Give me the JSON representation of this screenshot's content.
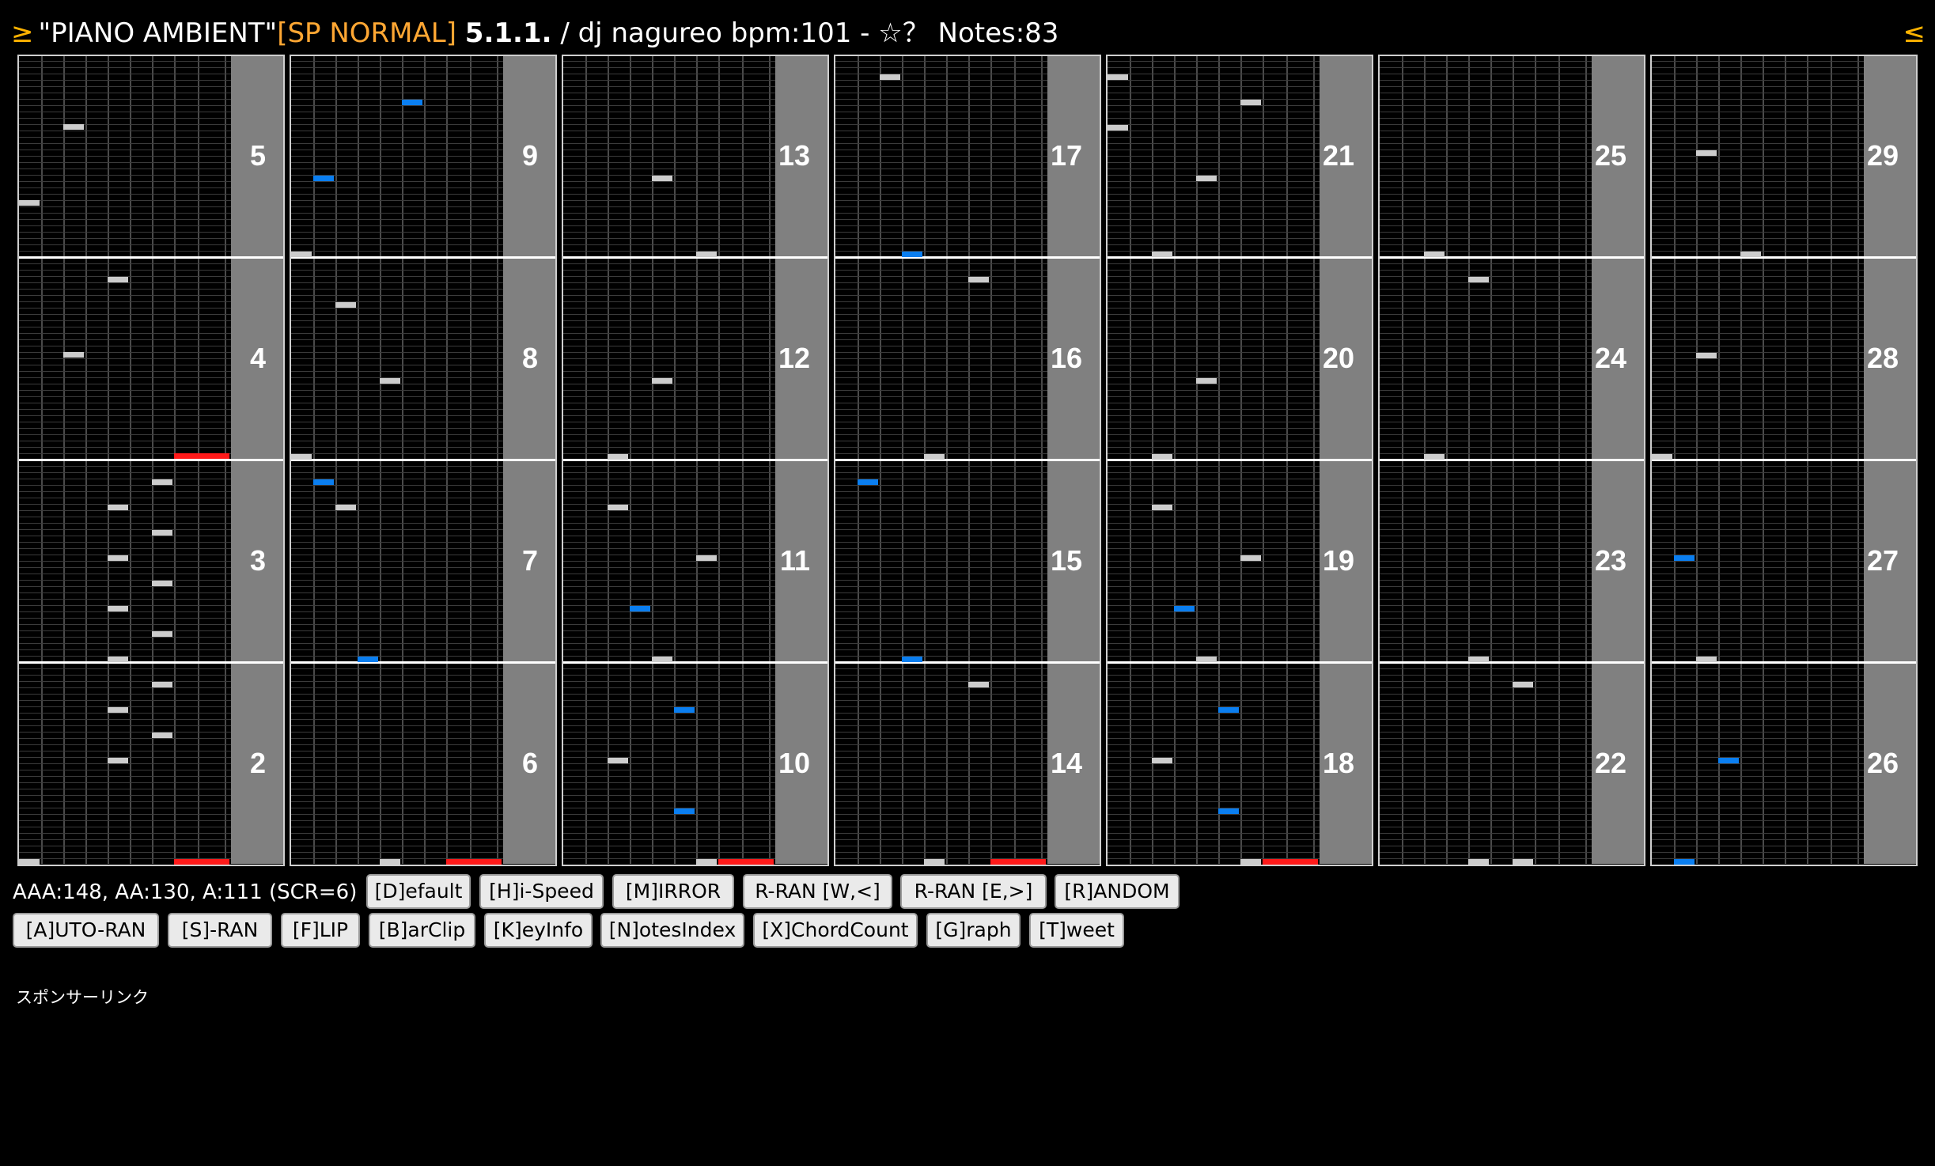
{
  "header": {
    "nav_prev": "≥",
    "title": "\"PIANO AMBIENT\"",
    "difficulty": "[SP NORMAL]",
    "version": "5.1.1.",
    "artist_bpm": " / dj nagureo bpm:101 - ☆？ Notes:83",
    "nav_next": "≤"
  },
  "colors": {
    "accent": "#ffb300",
    "difficulty": "#ffa733",
    "key_white": "#cccccc",
    "key_blue": "#0a7ef0",
    "scratch": "#ff1a1a",
    "measure_label_bg": "#808080"
  },
  "measures": [
    {
      "label": "5"
    },
    {
      "label": "4"
    },
    {
      "label": "3"
    },
    {
      "label": "2"
    },
    {
      "label": "9"
    },
    {
      "label": "8"
    },
    {
      "label": "7"
    },
    {
      "label": "6"
    },
    {
      "label": "13"
    },
    {
      "label": "12"
    },
    {
      "label": "11"
    },
    {
      "label": "10"
    },
    {
      "label": "17"
    },
    {
      "label": "16"
    },
    {
      "label": "15"
    },
    {
      "label": "14"
    },
    {
      "label": "21"
    },
    {
      "label": "20"
    },
    {
      "label": "19"
    },
    {
      "label": "18"
    },
    {
      "label": "25"
    },
    {
      "label": "24"
    },
    {
      "label": "23"
    },
    {
      "label": "22"
    },
    {
      "label": "29"
    },
    {
      "label": "28"
    },
    {
      "label": "27"
    },
    {
      "label": "26"
    }
  ],
  "stats": "AAA:148, AA:130, A:111 (SCR=6)",
  "buttons": {
    "default": "[D]efault",
    "hispeed": "[H]i-Speed",
    "mirror": "[M]IRROR",
    "rran_w": "R-RAN [W,<]",
    "rran_e": "R-RAN [E,>]",
    "random": "[R]ANDOM",
    "autoran": "[A]UTO-RAN",
    "sran": "[S]-RAN",
    "flip": "[F]LIP",
    "barclip": "[B]arClip",
    "keyinfo": "[K]eyInfo",
    "notesindex": "[N]otesIndex",
    "chordcount": "[X]ChordCount",
    "graph": "[G]raph",
    "tweet": "[T]weet"
  },
  "sponsor": "スポンサーリンク"
}
